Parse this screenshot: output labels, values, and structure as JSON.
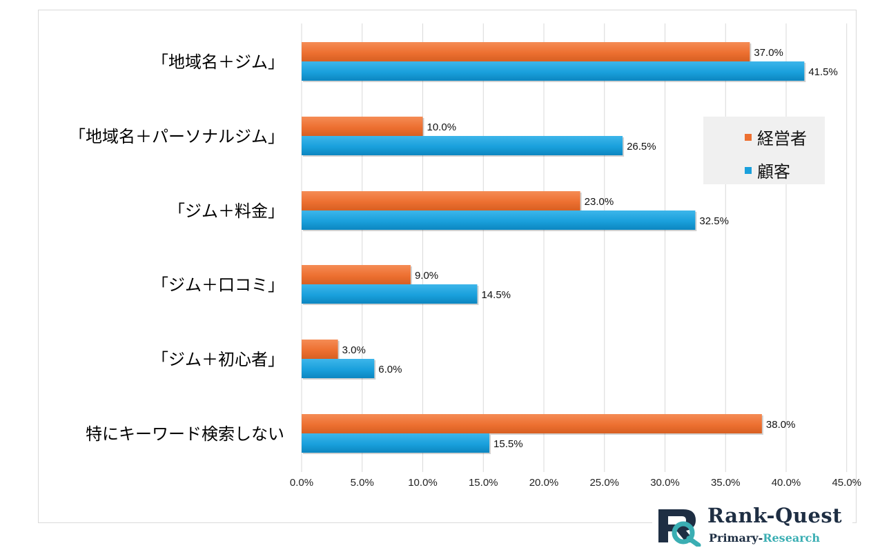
{
  "chart_data": {
    "type": "bar",
    "orientation": "horizontal",
    "categories": [
      "「地域名＋ジム」",
      "「地域名＋パーソナルジム」",
      "「ジム＋料金」",
      "「ジム＋口コミ」",
      "「ジム＋初心者」",
      "特にキーワード検索しない"
    ],
    "series": [
      {
        "name": "経営者",
        "color": "#ed7031",
        "values": [
          37.0,
          10.0,
          23.0,
          9.0,
          3.0,
          38.0
        ],
        "labels": [
          "37.0%",
          "10.0%",
          "23.0%",
          "9.0%",
          "3.0%",
          "38.0%"
        ]
      },
      {
        "name": "顧客",
        "color": "#1aa0dc",
        "values": [
          41.5,
          26.5,
          32.5,
          14.5,
          6.0,
          15.5
        ],
        "labels": [
          "41.5%",
          "26.5%",
          "32.5%",
          "14.5%",
          "6.0%",
          "15.5%"
        ]
      }
    ],
    "xlim": [
      0,
      45
    ],
    "xticks": [
      "0.0%",
      "5.0%",
      "10.0%",
      "15.0%",
      "20.0%",
      "25.0%",
      "30.0%",
      "35.0%",
      "40.0%",
      "45.0%"
    ],
    "grid": "vertical",
    "legend_position": "right"
  },
  "logo": {
    "title": "Rank-Quest",
    "subtitle_main": "Primary-",
    "subtitle_accent": "Research",
    "mark": "RQ-logo-icon"
  }
}
